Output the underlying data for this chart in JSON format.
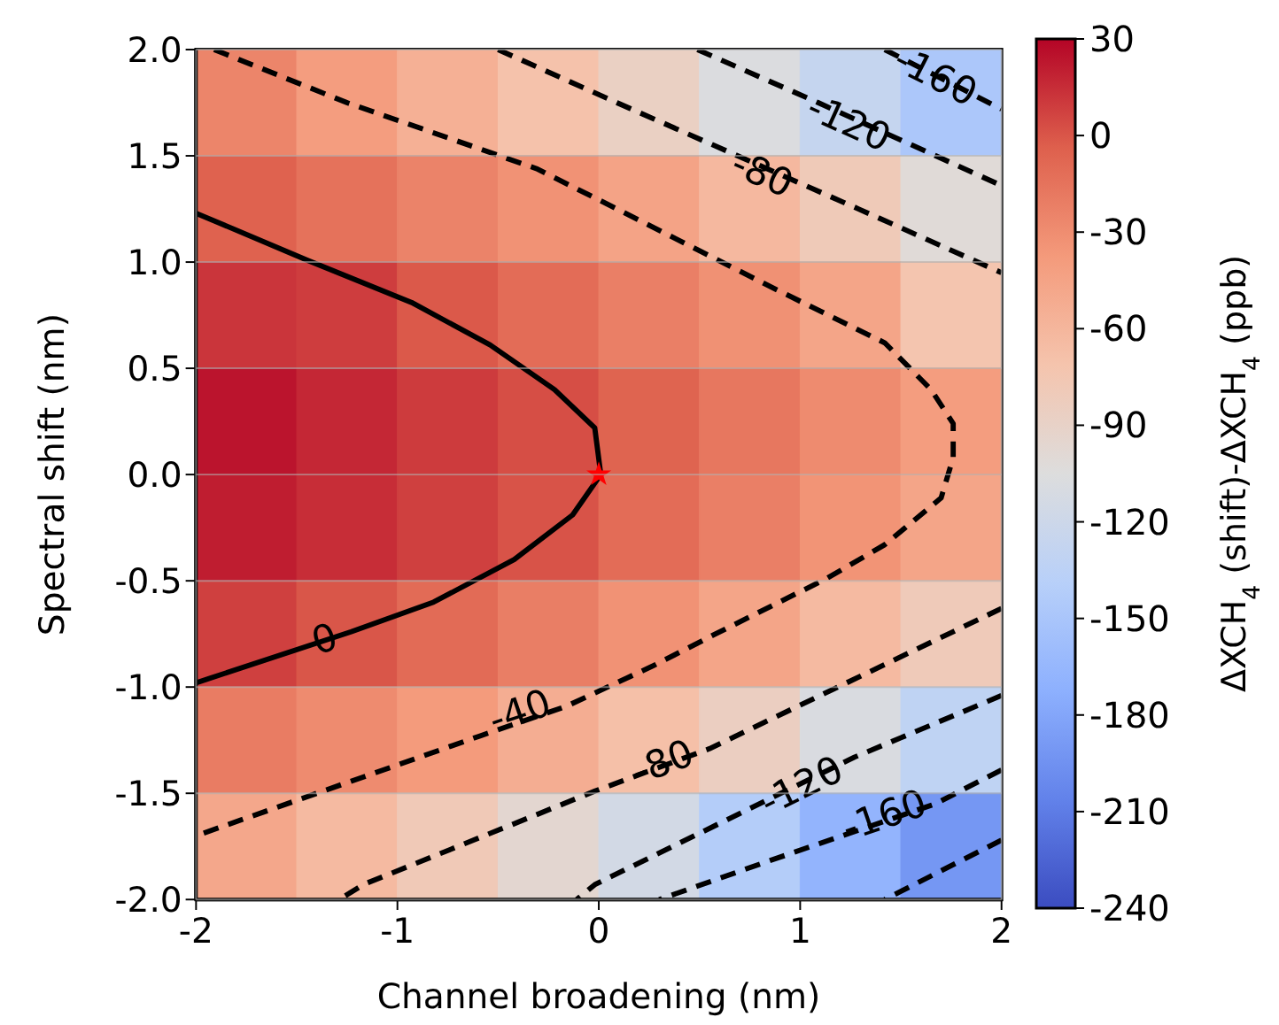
{
  "chart_data": {
    "type": "heatmap",
    "xlabel": "Channel broadening (nm)",
    "ylabel": "Spectral shift (nm)",
    "clabel": "ΔXCH$_{4}$ (shift)-ΔXCH$_{4}$ (ppb)",
    "x": [
      -1.75,
      -1.25,
      -0.75,
      -0.25,
      0.25,
      0.75,
      1.25,
      1.75
    ],
    "y": [
      1.75,
      1.25,
      0.75,
      0.25,
      -0.25,
      -0.75,
      -1.25,
      -1.75
    ],
    "cells": [
      [
        -25,
        -40,
        -55,
        -70,
        -87,
        -107,
        -127,
        -148
      ],
      [
        -5,
        -14,
        -24,
        -33,
        -45,
        -62,
        -79,
        -101
      ],
      [
        12,
        9,
        -1,
        -11,
        -22,
        -32,
        -46,
        -73
      ],
      [
        24,
        17,
        10,
        3,
        -6,
        -17,
        -29,
        -40
      ],
      [
        21,
        15,
        8,
        1,
        -11,
        -22,
        -34,
        -46
      ],
      [
        8,
        0,
        -10,
        -21,
        -33,
        -46,
        -63,
        -80
      ],
      [
        -20,
        -29,
        -38,
        -53,
        -68,
        -85,
        -109,
        -132
      ],
      [
        -48,
        -63,
        -78,
        -96,
        -115,
        -142,
        -168,
        -191
      ]
    ],
    "clim": [
      -240,
      30
    ],
    "cticks": [
      -240,
      -210,
      -180,
      -150,
      -120,
      -90,
      -60,
      -30,
      0,
      30
    ],
    "xlim": [
      -2,
      2
    ],
    "xticks": [
      -2,
      -1,
      0,
      1,
      2
    ],
    "ylim": [
      -2,
      2
    ],
    "yticks": [
      {
        "value": -2,
        "label": "-2.0"
      },
      {
        "value": -1.5,
        "label": "-1.5"
      },
      {
        "value": -1,
        "label": "-1.0"
      },
      {
        "value": -0.5,
        "label": "-0.5"
      },
      {
        "value": 0,
        "label": "0.0"
      },
      {
        "value": 0.5,
        "label": "0.5"
      },
      {
        "value": 1,
        "label": "1.0"
      },
      {
        "value": 1.5,
        "label": "1.5"
      },
      {
        "value": 2,
        "label": "2.0"
      }
    ],
    "grid": true,
    "series": [
      {
        "type": "line",
        "color": "#000000",
        "line_style": "solid",
        "x": [
          -2,
          -1.45,
          -0.93,
          -0.54,
          -0.22,
          -0.02,
          0.01,
          -0.13,
          -0.42,
          -0.82,
          -1.23,
          -2
        ],
        "values": [
          1.23,
          1.01,
          0.81,
          0.61,
          0.4,
          0.22,
          0,
          -0.19,
          -0.4,
          -0.6,
          -0.74,
          -0.98
        ]
      },
      {
        "type": "line",
        "color": "#000000",
        "line_style": "dashed",
        "x": [
          -1.91,
          -1.25,
          -0.31,
          0.09,
          0.84,
          1.42,
          1.65,
          1.76,
          1.76,
          1.7,
          1.42,
          1.13,
          0.58,
          0.27,
          -0.16,
          -0.59,
          -2
        ],
        "values": [
          2,
          1.75,
          1.44,
          1.25,
          0.89,
          0.62,
          0.4,
          0.24,
          0.08,
          -0.11,
          -0.33,
          -0.49,
          -0.75,
          -0.9,
          -1.09,
          -1.23,
          -1.7
        ]
      },
      {
        "type": "line",
        "color": "#000000",
        "line_style": "dashed",
        "x": [
          -0.5,
          0.09,
          1.29,
          2
        ],
        "values": [
          2,
          1.75,
          1.25,
          0.95
        ]
      },
      {
        "type": "line",
        "color": "#000000",
        "line_style": "dashed",
        "x": [
          2,
          0.55,
          -0.02,
          -1.17,
          -1.29
        ],
        "values": [
          -0.63,
          -1.29,
          -1.49,
          -1.93,
          -2
        ]
      },
      {
        "type": "line",
        "color": "#000000",
        "line_style": "dashed",
        "x": [
          0.49,
          1.09,
          2
        ],
        "values": [
          2,
          1.75,
          1.36
        ]
      },
      {
        "type": "line",
        "color": "#000000",
        "line_style": "dashed",
        "x": [
          2,
          1.27,
          -0.02,
          -0.11
        ],
        "values": [
          -1.04,
          -1.33,
          -1.93,
          -2
        ]
      },
      {
        "type": "line",
        "color": "#000000",
        "line_style": "dashed",
        "x": [
          1.42,
          2
        ],
        "values": [
          2,
          1.72
        ]
      },
      {
        "type": "line",
        "color": "#000000",
        "line_style": "dashed",
        "x": [
          2,
          1.67,
          0.84,
          0.3
        ],
        "values": [
          -1.39,
          -1.55,
          -1.82,
          -2
        ]
      },
      {
        "type": "line",
        "color": "#000000",
        "line_style": "dashed",
        "x": [
          2,
          1.42
        ],
        "values": [
          -1.72,
          -2
        ]
      },
      {
        "type": "scatter",
        "color": "#ff0000",
        "marker": "star",
        "x": [
          0
        ],
        "values": [
          0
        ]
      }
    ],
    "annotations": [
      {
        "text": "0",
        "x": -1.36,
        "y": -0.78
      },
      {
        "text": "-40",
        "x": -0.39,
        "y": -1.12
      },
      {
        "text": "-80",
        "x": 0.32,
        "y": -1.36
      },
      {
        "text": "-120",
        "x": 1.01,
        "y": -1.47
      },
      {
        "text": "-160",
        "x": 1.42,
        "y": -1.61
      },
      {
        "text": "-80",
        "x": 0.81,
        "y": 1.41
      },
      {
        "text": "-120",
        "x": 1.24,
        "y": 1.65
      },
      {
        "text": "-160",
        "x": 1.67,
        "y": 1.87
      }
    ]
  }
}
